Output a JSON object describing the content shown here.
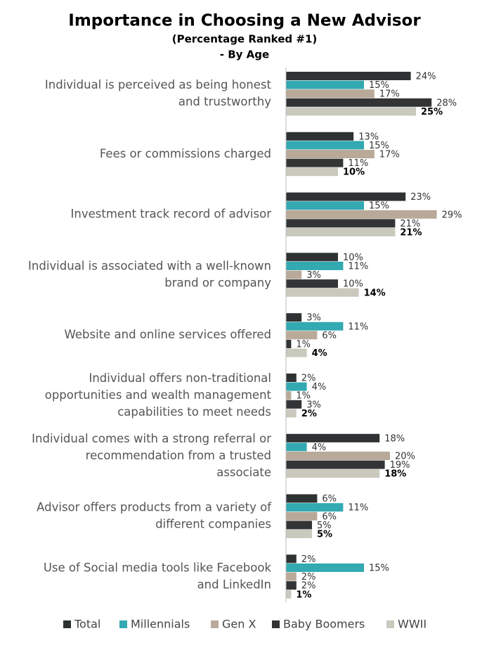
{
  "chart_data": {
    "type": "hbar",
    "title": "Importance in Choosing a New Advisor",
    "subtitle": [
      "(Percentage Ranked #1)",
      "- By Age"
    ],
    "categories": [
      [
        "Individual is perceived as being honest",
        "and trustworthy"
      ],
      [
        "Fees or commissions charged"
      ],
      [
        "Investment track record of advisor"
      ],
      [
        "Individual is associated with a well-known",
        "brand or company"
      ],
      [
        "Website and online services offered"
      ],
      [
        "Individual offers non-traditional",
        "opportunities and wealth management",
        "capabilities to meet needs"
      ],
      [
        "Individual comes with a strong referral or",
        "recommendation from a trusted",
        "associate"
      ],
      [
        "Advisor offers products from a variety of",
        "different companies"
      ],
      [
        "Use of Social media tools like Facebook",
        "and LinkedIn"
      ]
    ],
    "series": [
      {
        "name": "Total",
        "color": "#2e3233",
        "values": [
          24,
          13,
          23,
          10,
          3,
          2,
          18,
          6,
          2
        ],
        "value_labels": [
          "24%",
          "13%",
          "23%",
          "10%",
          "3%",
          "2%",
          "18%",
          "6%",
          "2%"
        ]
      },
      {
        "name": "Millennials",
        "color": "#33a9b1",
        "values": [
          15,
          15,
          15,
          11,
          11,
          4,
          4,
          11,
          15
        ],
        "value_labels": [
          "15%",
          "15%",
          "15%",
          "11%",
          "11%",
          "4%",
          "4%",
          "11%",
          "15%"
        ]
      },
      {
        "name": "Gen X",
        "color": "#b9a999",
        "values": [
          17,
          17,
          29,
          3,
          6,
          1,
          20,
          6,
          2
        ],
        "value_labels": [
          "17%",
          "17%",
          "29%",
          "3%",
          "6%",
          "1%",
          "20%",
          "6%",
          "2%"
        ]
      },
      {
        "name": "Baby Boomers",
        "color": "#333435",
        "values": [
          28,
          11,
          21,
          10,
          1,
          3,
          19,
          5,
          2
        ],
        "value_labels": [
          "28%",
          "11%",
          "21%",
          "10%",
          "1%",
          "3%",
          "19%",
          "5%",
          "2%"
        ]
      },
      {
        "name": "WWII",
        "color": "#c9c9bd",
        "values": [
          25,
          10,
          21,
          14,
          4,
          2,
          18,
          5,
          1
        ],
        "value_labels": [
          "25%",
          "10%",
          "21%",
          "14%",
          "4%",
          "2%",
          "18%",
          "5%",
          "1%"
        ]
      }
    ]
  }
}
